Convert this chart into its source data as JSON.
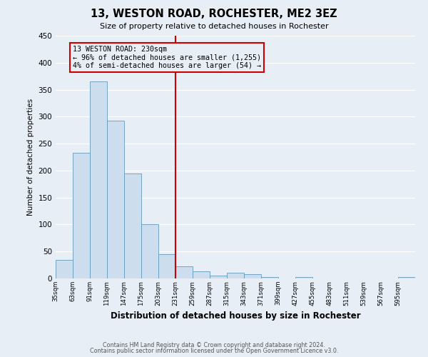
{
  "title": "13, WESTON ROAD, ROCHESTER, ME2 3EZ",
  "subtitle": "Size of property relative to detached houses in Rochester",
  "xlabel": "Distribution of detached houses by size in Rochester",
  "ylabel": "Number of detached properties",
  "bar_color": "#ccdded",
  "bar_edge_color": "#6699bb",
  "background_color": "#e8eef5",
  "grid_color": "#ffffff",
  "vline_x": 231,
  "vline_color": "#cc0000",
  "annotation_title": "13 WESTON ROAD: 230sqm",
  "annotation_line1": "← 96% of detached houses are smaller (1,255)",
  "annotation_line2": "4% of semi-detached houses are larger (54) →",
  "annotation_box_edge_color": "#cc0000",
  "bins": [
    35,
    63,
    91,
    119,
    147,
    175,
    203,
    231,
    259,
    287,
    315,
    343,
    371,
    399,
    427,
    455,
    483,
    511,
    539,
    567,
    595
  ],
  "values": [
    35,
    233,
    365,
    292,
    195,
    101,
    45,
    22,
    13,
    5,
    10,
    8,
    3,
    0,
    3,
    0,
    0,
    0,
    0,
    0,
    3
  ],
  "ylim": [
    0,
    450
  ],
  "yticks": [
    0,
    50,
    100,
    150,
    200,
    250,
    300,
    350,
    400,
    450
  ],
  "footer_line1": "Contains HM Land Registry data © Crown copyright and database right 2024.",
  "footer_line2": "Contains public sector information licensed under the Open Government Licence v3.0."
}
